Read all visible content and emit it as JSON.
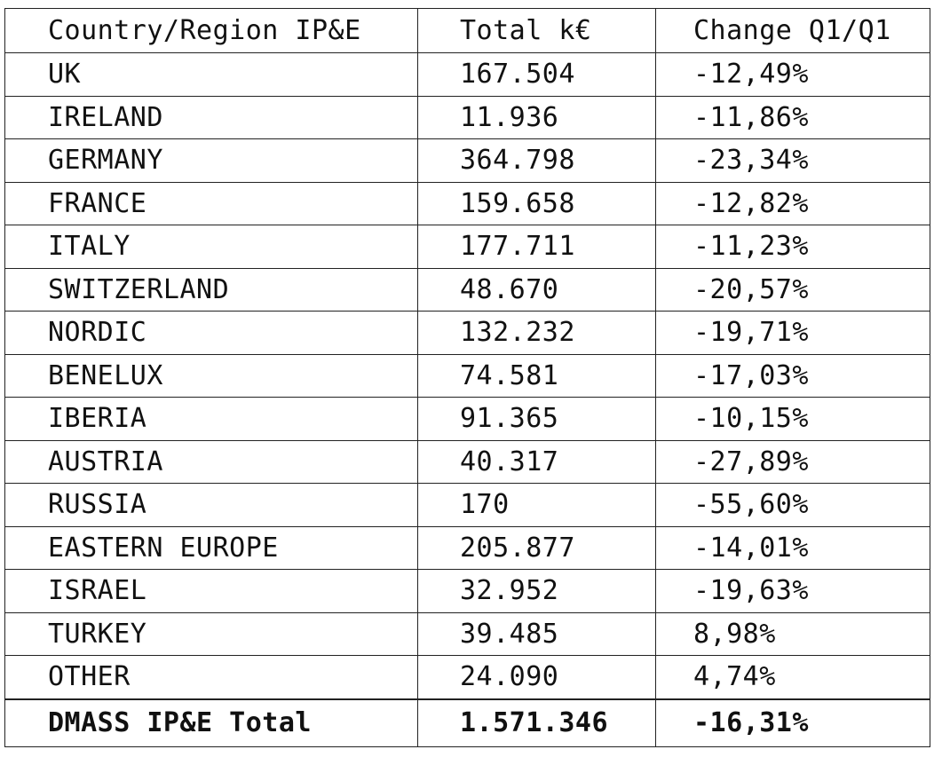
{
  "table": {
    "headers": [
      "Country/Region IP&E",
      "Total k€",
      "Change Q1/Q1"
    ],
    "rows": [
      [
        "UK",
        "167.504",
        "-12,49%"
      ],
      [
        "IRELAND",
        "11.936",
        "-11,86%"
      ],
      [
        "GERMANY",
        "364.798",
        "-23,34%"
      ],
      [
        "FRANCE",
        "159.658",
        "-12,82%"
      ],
      [
        "ITALY",
        "177.711",
        "-11,23%"
      ],
      [
        "SWITZERLAND",
        "48.670",
        "-20,57%"
      ],
      [
        "NORDIC",
        "132.232",
        "-19,71%"
      ],
      [
        "BENELUX",
        "74.581",
        "-17,03%"
      ],
      [
        "IBERIA",
        "91.365",
        "-10,15%"
      ],
      [
        "AUSTRIA",
        "40.317",
        "-27,89%"
      ],
      [
        "RUSSIA",
        "170",
        "-55,60%"
      ],
      [
        "EASTERN EUROPE",
        "205.877",
        "-14,01%"
      ],
      [
        "ISRAEL",
        "32.952",
        "-19,63%"
      ],
      [
        "TURKEY",
        "39.485",
        "8,98%"
      ],
      [
        "OTHER",
        "24.090",
        "4,74%"
      ]
    ],
    "total": [
      "DMASS IP&E Total",
      "1.571.346",
      "-16,31%"
    ]
  }
}
